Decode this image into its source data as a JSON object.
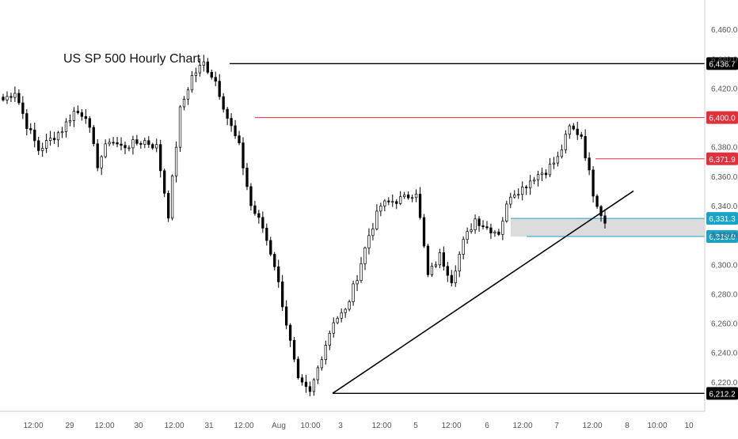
{
  "chart_data": {
    "type": "candlestick",
    "title": "US SP 500 Hourly Chart",
    "ylim": [
      6200,
      6480
    ],
    "y_ticks": [
      "6,220.0",
      "6,240.0",
      "6,260.0",
      "6,280.0",
      "6,300.0",
      "6,320.0",
      "6,340.0",
      "6,360.0",
      "6,380.0",
      "6,420.0",
      "6,440.0",
      "6,460.0"
    ],
    "x_ticks": [
      "12:00",
      "29",
      "12:00",
      "30",
      "12:00",
      "31",
      "12:00",
      "Aug",
      "10:00",
      "3",
      "12:00",
      "5",
      "12:00",
      "6",
      "12:00",
      "7",
      "12:00",
      "8",
      "10:00",
      "10"
    ],
    "levels": [
      {
        "label": "6,436.7",
        "value": 6436.7,
        "color": "#000000"
      },
      {
        "label": "6,400.0",
        "value": 6400.0,
        "color": "#e0303b"
      },
      {
        "label": "6,371.9",
        "value": 6371.9,
        "color": "#e0303b"
      },
      {
        "label": "6,331.3",
        "value": 6331.3,
        "color": "#1aa3c9"
      },
      {
        "label": "6,319.0",
        "value": 6319.0,
        "color": "#1aa3c9"
      },
      {
        "label": "6,212.2",
        "value": 6212.2,
        "color": "#000000"
      }
    ],
    "zone": {
      "from": 6319.0,
      "to": 6331.3,
      "color": "#dcdcdc"
    },
    "trendline": {
      "start": 6212.2,
      "end": 6350.0
    },
    "anchors": [
      6412,
      6418,
      6395,
      6378,
      6385,
      6392,
      6404,
      6402,
      6368,
      6385,
      6380,
      6382,
      6384,
      6380,
      6334,
      6405,
      6428,
      6437,
      6425,
      6400,
      6380,
      6340,
      6325,
      6300,
      6260,
      6220,
      6212,
      6238,
      6262,
      6268,
      6292,
      6320,
      6340,
      6343,
      6345,
      6350,
      6292,
      6306,
      6290,
      6315,
      6331,
      6325,
      6322,
      6348,
      6352,
      6360,
      6364,
      6372,
      6393,
      6388,
      6349,
      6328
    ],
    "candles_per_segment": 3
  }
}
